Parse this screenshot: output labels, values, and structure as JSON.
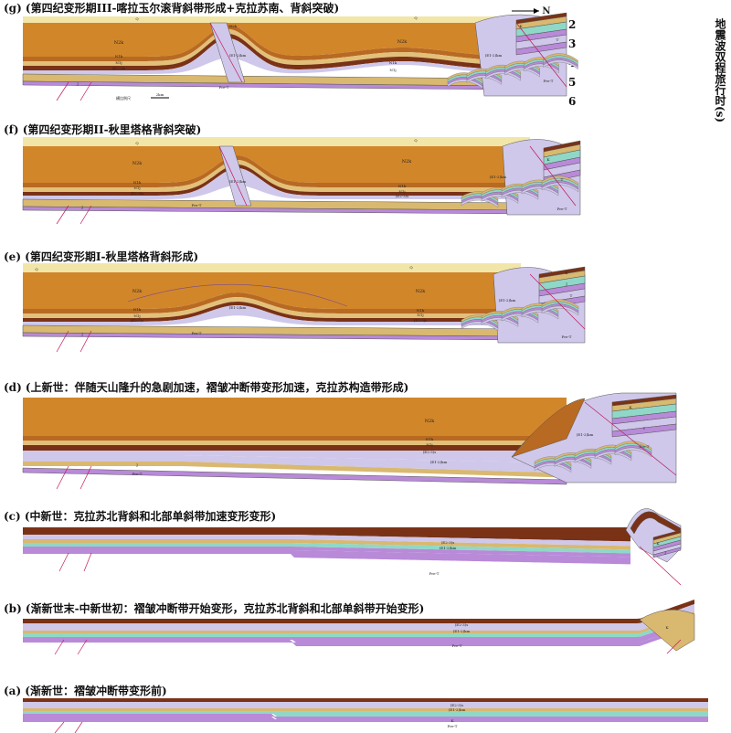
{
  "panels": [
    {
      "id": "g",
      "title": "(g) (第四纪变形期III-喀拉玉尔滚背斜带形成+克拉苏南、背斜突破)"
    },
    {
      "id": "f",
      "title": "(f) (第四纪变形期II-秋里塔格背斜突破)"
    },
    {
      "id": "e",
      "title": "(e) (第四纪变形期I-秋里塔格背斜形成)"
    },
    {
      "id": "d",
      "title": "(d) (上新世：伴随天山隆升的急剧加速，褶皱冲断带变形加速，克拉苏构造带形成)"
    },
    {
      "id": "c",
      "title": "(c) (中新世：克拉苏北背斜和北部单斜带加速变形变形)"
    },
    {
      "id": "b",
      "title": "(b) (渐新世末-中新世初：褶皱冲断带开始变形，克拉苏北背斜和北部单斜带开始变形)"
    },
    {
      "id": "a",
      "title": "(a) (渐新世：褶皱冲断带变形前)"
    }
  ],
  "axis": {
    "title": "地震波双程旅行时(s)",
    "ticks": [
      "2",
      "3",
      "4",
      "5",
      "6"
    ]
  },
  "north_label": "N",
  "scale_label": "2km",
  "scale_caption": "横比例尺",
  "unit_labels": {
    "Q": "Q",
    "N2k": "N2k",
    "N1k": "N1k",
    "N1j": "N1j",
    "E23s": "(E2-3)s",
    "E12km": "(E1-2)km",
    "K": "K",
    "J": "J",
    "T": "T",
    "PreT": "Pre-T"
  },
  "colors": {
    "Q": "#f1e6a8",
    "N2k": "#d2862a",
    "N1k": "#b86a22",
    "N1j": "#e2c07a",
    "E23s": "#7a3216",
    "E12km": "#cfc8ea",
    "K": "#d9b870",
    "J": "#8fd8c8",
    "T": "#b88ad8",
    "PreT": "#ffffff"
  }
}
